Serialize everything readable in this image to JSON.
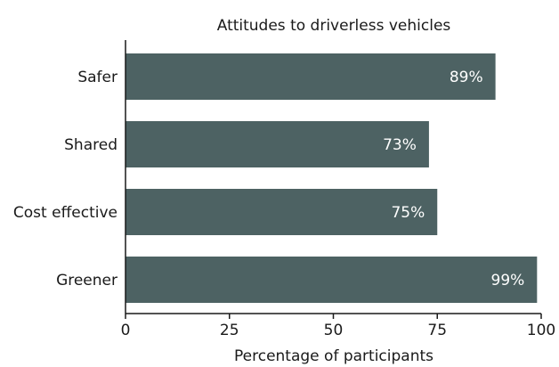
{
  "chart_data": {
    "type": "bar",
    "orientation": "horizontal",
    "title": "Attitudes to driverless vehicles",
    "xlabel": "Percentage of participants",
    "ylabel": "",
    "categories": [
      "Safer",
      "Shared",
      "Cost effective",
      "Greener"
    ],
    "values": [
      89,
      73,
      75,
      99
    ],
    "data_labels": [
      "89%",
      "73%",
      "75%",
      "99%"
    ],
    "xlim": [
      0,
      100
    ],
    "xticks": [
      0,
      25,
      50,
      75,
      100
    ],
    "grid": false,
    "legend": "none",
    "bar_color": "#4d6263"
  }
}
